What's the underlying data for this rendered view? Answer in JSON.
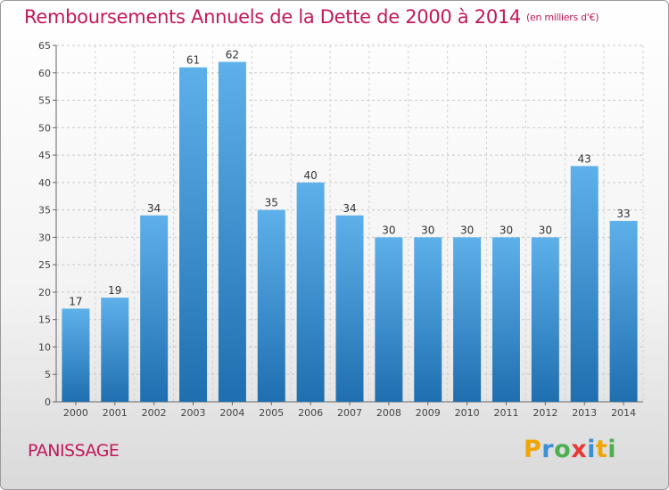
{
  "header": {
    "title": "Remboursements Annuels de la Dette de 2000 à 2014",
    "subtitle": "(en milliers d'€)"
  },
  "footer": {
    "place": "PANISSAGE",
    "logo_letters": [
      "P",
      "r",
      "o",
      "x",
      "i",
      "t",
      "i"
    ],
    "logo_colors": [
      "#f0a500",
      "#3a8fd6",
      "#4caf50",
      "#e53935",
      "#3a8fd6",
      "#f0a500",
      "#4caf50"
    ]
  },
  "colors": {
    "bar_top": "#5eb0ea",
    "bar_bottom": "#1f6fb0",
    "title": "#c2185b"
  },
  "chart_data": {
    "type": "bar",
    "categories": [
      "2000",
      "2001",
      "2002",
      "2003",
      "2004",
      "2005",
      "2006",
      "2007",
      "2008",
      "2009",
      "2010",
      "2011",
      "2012",
      "2013",
      "2014"
    ],
    "values": [
      17,
      19,
      34,
      61,
      62,
      35,
      40,
      34,
      30,
      30,
      30,
      30,
      30,
      43,
      33
    ],
    "ylim": [
      0,
      65
    ],
    "yticks": [
      0,
      5,
      10,
      15,
      20,
      25,
      30,
      35,
      40,
      45,
      50,
      55,
      60,
      65
    ],
    "grid": true
  }
}
